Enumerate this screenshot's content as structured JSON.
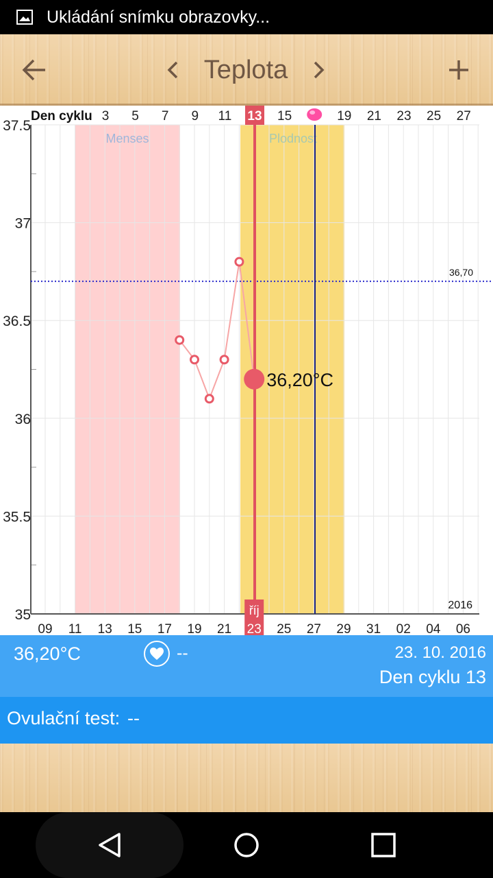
{
  "status_bar": {
    "text": "Ukládání snímku obrazovky..."
  },
  "toolbar": {
    "title": "Teplota",
    "back_icon": "arrow-left-icon",
    "prev_icon": "chevron-left-icon",
    "next_icon": "chevron-right-icon",
    "add_icon": "plus-icon"
  },
  "chart_data": {
    "type": "line",
    "top_axis_label": "Den cyklu",
    "top_axis_ticks": [
      "3",
      "5",
      "7",
      "9",
      "11",
      "13",
      "15",
      "",
      "19",
      "21",
      "23",
      "25",
      "27"
    ],
    "selected_cycle_day": "13",
    "bottom_axis_ticks": [
      "09",
      "11",
      "13",
      "15",
      "17",
      "19",
      "21",
      "23",
      "25",
      "27",
      "29",
      "31",
      "02",
      "04",
      "06"
    ],
    "bottom_month_label": "říj",
    "selected_date_tick": "23",
    "year_label": "2016",
    "y_ticks": [
      "37.5",
      "37",
      "36.5",
      "36",
      "35.5",
      "35"
    ],
    "ylim": [
      35,
      37.5
    ],
    "reference_line": {
      "value": 36.7,
      "label": "36,70"
    },
    "menses_label": "Menses",
    "fertile_label": "Plodnost",
    "series": [
      {
        "x": [
          "2016-10-18",
          "2016-10-19",
          "2016-10-20",
          "2016-10-21",
          "2016-10-22",
          "2016-10-23"
        ],
        "values": [
          36.4,
          36.3,
          36.1,
          36.3,
          36.8,
          36.2
        ]
      }
    ],
    "selected_value_label": "36,20°C",
    "colors": {
      "menses_band": "#ffd1d1",
      "fertile_band": "#f9db7a",
      "line": "#f7a6a6",
      "point": "#e85a68",
      "selection": "#e05260",
      "reference": "#2a2acc",
      "ovulation_line": "#1a237e"
    }
  },
  "info": {
    "temperature": "36,20°C",
    "heart_icon": "heart-icon",
    "heart_value": "--",
    "date": "23. 10. 2016",
    "cycle_day": "Den cyklu 13"
  },
  "ovulation": {
    "label": "Ovulační test:",
    "value": "--"
  },
  "nav": {
    "back_icon": "nav-back-icon",
    "home_icon": "nav-home-icon",
    "recents_icon": "nav-recents-icon"
  }
}
